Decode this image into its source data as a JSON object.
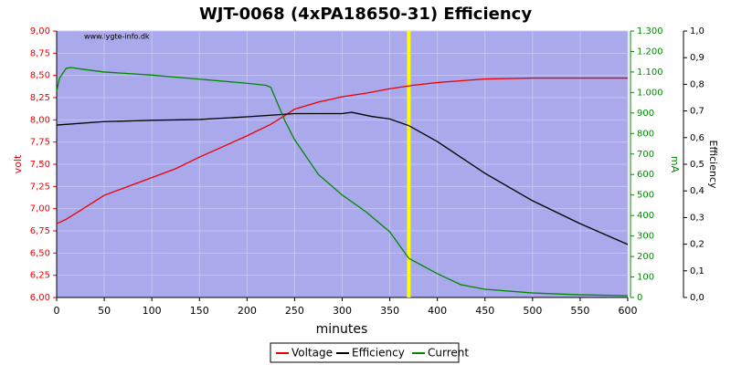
{
  "chart_data": {
    "type": "line",
    "title": "WJT-0068 (4xPA18650-31) Efficiency",
    "watermark": "www.lygte-info.dk",
    "xlabel": "minutes",
    "ylabel": "volt",
    "y2label": "mA",
    "y3label": "Efficiency",
    "xlim": [
      0,
      600
    ],
    "xticks": [
      0,
      50,
      100,
      150,
      200,
      250,
      300,
      350,
      400,
      450,
      500,
      550,
      600
    ],
    "ylim": [
      6,
      9
    ],
    "yticks": [
      {
        "value": 6,
        "label": "6,00"
      },
      {
        "value": 6.25,
        "label": "6,25"
      },
      {
        "value": 6.5,
        "label": "6,50"
      },
      {
        "value": 6.75,
        "label": "6,75"
      },
      {
        "value": 7,
        "label": "7,00"
      },
      {
        "value": 7.25,
        "label": "7,25"
      },
      {
        "value": 7.5,
        "label": "7,50"
      },
      {
        "value": 7.75,
        "label": "7,75"
      },
      {
        "value": 8,
        "label": "8,00"
      },
      {
        "value": 8.25,
        "label": "8,25"
      },
      {
        "value": 8.5,
        "label": "8,50"
      },
      {
        "value": 8.75,
        "label": "8,75"
      },
      {
        "value": 9,
        "label": "9,00"
      }
    ],
    "y2lim": [
      0,
      1300
    ],
    "y2ticks": [
      0,
      100,
      200,
      300,
      400,
      500,
      600,
      700,
      800,
      900,
      {
        "value": 1000,
        "label": "1.000"
      },
      {
        "value": 1100,
        "label": "1.100"
      },
      {
        "value": 1200,
        "label": "1.200"
      },
      {
        "value": 1300,
        "label": "1.300"
      }
    ],
    "y3lim": [
      0,
      1
    ],
    "y3ticks": [
      {
        "value": 0,
        "label": "0,0"
      },
      {
        "value": 0.1,
        "label": "0,1"
      },
      {
        "value": 0.2,
        "label": "0,2"
      },
      {
        "value": 0.3,
        "label": "0,3"
      },
      {
        "value": 0.4,
        "label": "0,4"
      },
      {
        "value": 0.5,
        "label": "0,5"
      },
      {
        "value": 0.6,
        "label": "0,6"
      },
      {
        "value": 0.7,
        "label": "0,7"
      },
      {
        "value": 0.8,
        "label": "0,8"
      },
      {
        "value": 0.9,
        "label": "0,9"
      },
      {
        "value": 1,
        "label": "1,0"
      }
    ],
    "grid": true,
    "legend": "bottom",
    "marker": {
      "x": 370,
      "color": "#ffff00"
    },
    "series": [
      {
        "name": "Voltage",
        "color": "#ee0000",
        "axis": "y",
        "x": [
          0,
          10,
          25,
          50,
          75,
          100,
          125,
          150,
          175,
          200,
          225,
          240,
          250,
          275,
          300,
          325,
          350,
          375,
          400,
          425,
          450,
          500,
          550,
          600
        ],
        "values": [
          6.83,
          6.88,
          6.98,
          7.15,
          7.25,
          7.35,
          7.45,
          7.58,
          7.7,
          7.82,
          7.95,
          8.05,
          8.12,
          8.2,
          8.26,
          8.3,
          8.35,
          8.39,
          8.42,
          8.44,
          8.46,
          8.47,
          8.47,
          8.47
        ]
      },
      {
        "name": "Efficiency",
        "color": "#000000",
        "axis": "y3",
        "x": [
          0,
          50,
          100,
          150,
          200,
          250,
          300,
          310,
          330,
          350,
          370,
          400,
          450,
          500,
          550,
          600
        ],
        "values": [
          0.647,
          0.66,
          0.665,
          0.668,
          0.678,
          0.69,
          0.69,
          0.695,
          0.68,
          0.67,
          0.645,
          0.585,
          0.466,
          0.363,
          0.277,
          0.199
        ]
      },
      {
        "name": "Current",
        "color": "#008800",
        "axis": "y2",
        "x": [
          0,
          3,
          10,
          15,
          25,
          50,
          100,
          150,
          200,
          220,
          225,
          240,
          250,
          275,
          300,
          325,
          350,
          370,
          400,
          425,
          450,
          500,
          550,
          600
        ],
        "values": [
          1006,
          1070,
          1118,
          1122,
          1115,
          1100,
          1085,
          1065,
          1045,
          1035,
          1025,
          860,
          770,
          600,
          500,
          418,
          320,
          191,
          116,
          62,
          40,
          22,
          13,
          9
        ]
      }
    ]
  }
}
